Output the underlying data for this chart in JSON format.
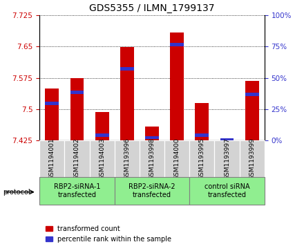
{
  "title": "GDS5355 / ILMN_1799137",
  "samples": [
    "GSM1194001",
    "GSM1194002",
    "GSM1194003",
    "GSM1193996",
    "GSM1193998",
    "GSM1194000",
    "GSM1193995",
    "GSM1193997",
    "GSM1193999"
  ],
  "red_values": [
    7.549,
    7.575,
    7.493,
    7.648,
    7.458,
    7.683,
    7.514,
    7.428,
    7.568
  ],
  "blue_values": [
    7.514,
    7.54,
    7.438,
    7.596,
    7.432,
    7.655,
    7.438,
    7.426,
    7.535
  ],
  "ylim_left": [
    7.425,
    7.725
  ],
  "yticks_left": [
    7.425,
    7.5,
    7.575,
    7.65,
    7.725
  ],
  "yticks_right": [
    0,
    25,
    50,
    75,
    100
  ],
  "group_labels": [
    "RBP2-siRNA-1\ntransfected",
    "RBP2-siRNA-2\ntransfected",
    "control siRNA\ntransfected"
  ],
  "group_ranges": [
    [
      0,
      3
    ],
    [
      3,
      6
    ],
    [
      6,
      9
    ]
  ],
  "bar_width": 0.55,
  "blue_bar_width": 0.55,
  "bar_color_red": "#cc0000",
  "bar_color_blue": "#3333cc",
  "ybase": 7.425,
  "sample_bg": "#d3d3d3",
  "group_bg": "#90ee90",
  "plot_bg": "#ffffff",
  "title_fontsize": 10,
  "tick_fontsize": 7.5,
  "label_fontsize": 7,
  "legend_fontsize": 7
}
